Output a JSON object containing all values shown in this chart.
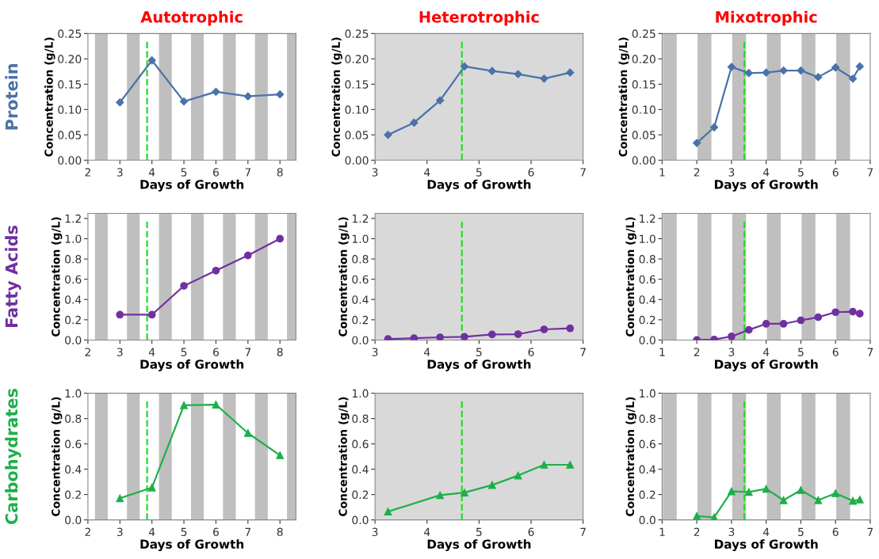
{
  "chart_data": [
    {
      "type": "line",
      "title": "Autotrophic",
      "annotations": [
        "Protein"
      ],
      "xlabel": "Days of Growth",
      "ylabel": "Concentration (g/L)",
      "marker": "diamond",
      "xlim": [
        2,
        8.5
      ],
      "xticks": [
        2,
        3,
        4,
        5,
        6,
        7,
        8
      ],
      "ylim": [
        0,
        0.25
      ],
      "yticks": [
        {
          "value": 0,
          "label": "0.00"
        },
        {
          "value": 0.05,
          "label": "0.05"
        },
        {
          "value": 0.1,
          "label": "0.10"
        },
        {
          "value": 0.15,
          "label": "0.15"
        },
        {
          "value": 0.2,
          "label": "0.20"
        },
        {
          "value": 0.25,
          "label": "0.25"
        }
      ],
      "series": [
        {
          "color": "#4a72a8",
          "x": [
            3,
            4,
            5,
            6,
            7,
            8
          ],
          "values": [
            0.114,
            0.197,
            0.116,
            0.135,
            0.126,
            0.13
          ]
        }
      ],
      "bands": [
        {
          "axis": "x",
          "from": 2.22,
          "to": 2.62,
          "color": "#bfbfbf"
        },
        {
          "axis": "x",
          "from": 3.22,
          "to": 3.62,
          "color": "#bfbfbf"
        },
        {
          "axis": "x",
          "from": 4.22,
          "to": 4.62,
          "color": "#bfbfbf"
        },
        {
          "axis": "x",
          "from": 5.22,
          "to": 5.62,
          "color": "#bfbfbf"
        },
        {
          "axis": "x",
          "from": 6.22,
          "to": 6.62,
          "color": "#bfbfbf"
        },
        {
          "axis": "x",
          "from": 7.22,
          "to": 7.62,
          "color": "#bfbfbf"
        },
        {
          "axis": "x",
          "from": 8.22,
          "to": 8.5,
          "color": "#bfbfbf"
        }
      ],
      "ref_lines": [
        {
          "axis": "x",
          "value": 3.85,
          "color": "#22dd22",
          "line_style": "dashed"
        }
      ]
    },
    {
      "type": "line",
      "title": "Heterotrophic",
      "xlabel": "Days of Growth",
      "ylabel": "Concentration (g/L)",
      "marker": "diamond",
      "xlim": [
        3,
        7
      ],
      "xticks": [
        3,
        4,
        5,
        6,
        7
      ],
      "ylim": [
        0,
        0.25
      ],
      "yticks": [
        {
          "value": 0,
          "label": "0.00"
        },
        {
          "value": 0.05,
          "label": "0.05"
        },
        {
          "value": 0.1,
          "label": "0.10"
        },
        {
          "value": 0.15,
          "label": "0.15"
        },
        {
          "value": 0.2,
          "label": "0.20"
        },
        {
          "value": 0.25,
          "label": "0.25"
        }
      ],
      "series": [
        {
          "color": "#4a72a8",
          "x": [
            3.25,
            3.75,
            4.25,
            4.72,
            5.25,
            5.75,
            6.25,
            6.75
          ],
          "values": [
            0.05,
            0.074,
            0.118,
            0.185,
            0.176,
            0.17,
            0.161,
            0.173
          ]
        }
      ],
      "bands": [
        {
          "axis": "x",
          "from": 3,
          "to": 7,
          "color": "#d9d9d9"
        }
      ],
      "ref_lines": [
        {
          "axis": "x",
          "value": 4.67,
          "color": "#22dd22",
          "line_style": "dashed"
        }
      ]
    },
    {
      "type": "line",
      "title": "Mixotrophic",
      "xlabel": "Days of Growth",
      "ylabel": "Concentration (g/L)",
      "marker": "diamond",
      "xlim": [
        1,
        7
      ],
      "xticks": [
        1,
        2,
        3,
        4,
        5,
        6,
        7
      ],
      "ylim": [
        0,
        0.25
      ],
      "yticks": [
        {
          "value": 0,
          "label": "0.00"
        },
        {
          "value": 0.05,
          "label": "0.05"
        },
        {
          "value": 0.1,
          "label": "0.10"
        },
        {
          "value": 0.15,
          "label": "0.15"
        },
        {
          "value": 0.2,
          "label": "0.20"
        },
        {
          "value": 0.25,
          "label": "0.25"
        }
      ],
      "series": [
        {
          "color": "#4a72a8",
          "x": [
            2,
            2.5,
            3,
            3.5,
            4,
            4.5,
            5,
            5.5,
            6,
            6.5,
            6.7
          ],
          "values": [
            0.034,
            0.065,
            0.184,
            0.172,
            0.173,
            0.177,
            0.177,
            0.164,
            0.183,
            0.161,
            0.185
          ]
        }
      ],
      "bands": [
        {
          "axis": "x",
          "from": 1.02,
          "to": 1.42,
          "color": "#bfbfbf"
        },
        {
          "axis": "x",
          "from": 2.02,
          "to": 2.42,
          "color": "#bfbfbf"
        },
        {
          "axis": "x",
          "from": 3.02,
          "to": 3.42,
          "color": "#bfbfbf"
        },
        {
          "axis": "x",
          "from": 4.02,
          "to": 4.42,
          "color": "#bfbfbf"
        },
        {
          "axis": "x",
          "from": 5.02,
          "to": 5.42,
          "color": "#bfbfbf"
        },
        {
          "axis": "x",
          "from": 6.02,
          "to": 6.42,
          "color": "#bfbfbf"
        }
      ],
      "ref_lines": [
        {
          "axis": "x",
          "value": 3.37,
          "color": "#22dd22",
          "line_style": "dashed"
        }
      ]
    },
    {
      "type": "line",
      "annotations": [
        "Fatty Acids"
      ],
      "xlabel": "Days of Growth",
      "ylabel": "Concentration (g/L)",
      "marker": "circle",
      "xlim": [
        2,
        8.5
      ],
      "xticks": [
        2,
        3,
        4,
        5,
        6,
        7,
        8
      ],
      "ylim": [
        0,
        1.25
      ],
      "yticks": [
        {
          "value": 0,
          "label": "0.0"
        },
        0.2,
        0.4,
        0.6,
        0.8,
        {
          "value": 1,
          "label": "1.0"
        },
        1.2
      ],
      "series": [
        {
          "color": "#7030a0",
          "x": [
            3,
            4,
            5,
            6,
            7,
            8
          ],
          "values": [
            0.25,
            0.25,
            0.535,
            0.685,
            0.835,
            1.0
          ]
        }
      ],
      "bands": [
        {
          "axis": "x",
          "from": 2.22,
          "to": 2.62,
          "color": "#bfbfbf"
        },
        {
          "axis": "x",
          "from": 3.22,
          "to": 3.62,
          "color": "#bfbfbf"
        },
        {
          "axis": "x",
          "from": 4.22,
          "to": 4.62,
          "color": "#bfbfbf"
        },
        {
          "axis": "x",
          "from": 5.22,
          "to": 5.62,
          "color": "#bfbfbf"
        },
        {
          "axis": "x",
          "from": 6.22,
          "to": 6.62,
          "color": "#bfbfbf"
        },
        {
          "axis": "x",
          "from": 7.22,
          "to": 7.62,
          "color": "#bfbfbf"
        },
        {
          "axis": "x",
          "from": 8.22,
          "to": 8.5,
          "color": "#bfbfbf"
        }
      ],
      "ref_lines": [
        {
          "axis": "x",
          "value": 3.85,
          "color": "#22dd22",
          "line_style": "dashed"
        }
      ]
    },
    {
      "type": "line",
      "xlabel": "Days of Growth",
      "ylabel": "Concentration (g/L)",
      "marker": "circle",
      "xlim": [
        3,
        7
      ],
      "xticks": [
        3,
        4,
        5,
        6,
        7
      ],
      "ylim": [
        0,
        1.25
      ],
      "yticks": [
        {
          "value": 0,
          "label": "0.0"
        },
        0.2,
        0.4,
        0.6,
        0.8,
        {
          "value": 1,
          "label": "1.0"
        },
        1.2
      ],
      "series": [
        {
          "color": "#7030a0",
          "x": [
            3.25,
            3.75,
            4.25,
            4.72,
            5.25,
            5.75,
            6.25,
            6.75
          ],
          "values": [
            0.01,
            0.018,
            0.027,
            0.032,
            0.055,
            0.058,
            0.105,
            0.115
          ]
        }
      ],
      "bands": [
        {
          "axis": "x",
          "from": 3,
          "to": 7,
          "color": "#d9d9d9"
        }
      ],
      "ref_lines": [
        {
          "axis": "x",
          "value": 4.67,
          "color": "#22dd22",
          "line_style": "dashed"
        }
      ]
    },
    {
      "type": "line",
      "xlabel": "Days of Growth",
      "ylabel": "Concentration (g/L)",
      "marker": "circle",
      "xlim": [
        1,
        7
      ],
      "xticks": [
        1,
        2,
        3,
        4,
        5,
        6,
        7
      ],
      "ylim": [
        0,
        1.25
      ],
      "yticks": [
        {
          "value": 0,
          "label": "0.0"
        },
        0.2,
        0.4,
        0.6,
        0.8,
        {
          "value": 1,
          "label": "1.0"
        },
        1.2
      ],
      "series": [
        {
          "color": "#7030a0",
          "x": [
            2,
            2.5,
            3,
            3.5,
            4,
            4.5,
            5,
            5.5,
            6,
            6.5,
            6.7
          ],
          "values": [
            0,
            0.005,
            0.035,
            0.1,
            0.16,
            0.16,
            0.195,
            0.225,
            0.275,
            0.28,
            0.26
          ]
        }
      ],
      "bands": [
        {
          "axis": "x",
          "from": 1.02,
          "to": 1.42,
          "color": "#bfbfbf"
        },
        {
          "axis": "x",
          "from": 2.02,
          "to": 2.42,
          "color": "#bfbfbf"
        },
        {
          "axis": "x",
          "from": 3.02,
          "to": 3.42,
          "color": "#bfbfbf"
        },
        {
          "axis": "x",
          "from": 4.02,
          "to": 4.42,
          "color": "#bfbfbf"
        },
        {
          "axis": "x",
          "from": 5.02,
          "to": 5.42,
          "color": "#bfbfbf"
        },
        {
          "axis": "x",
          "from": 6.02,
          "to": 6.42,
          "color": "#bfbfbf"
        }
      ],
      "ref_lines": [
        {
          "axis": "x",
          "value": 3.37,
          "color": "#22dd22",
          "line_style": "dashed"
        }
      ]
    },
    {
      "type": "line",
      "annotations": [
        "Carbohydrates"
      ],
      "xlabel": "Days of Growth",
      "ylabel": "Concentration (g/L)",
      "marker": "triangle",
      "xlim": [
        2,
        8.5
      ],
      "xticks": [
        2,
        3,
        4,
        5,
        6,
        7,
        8
      ],
      "ylim": [
        0,
        1
      ],
      "yticks": [
        {
          "value": 0,
          "label": "0.0"
        },
        0.2,
        0.4,
        0.6,
        0.8,
        {
          "value": 1,
          "label": "1.0"
        }
      ],
      "series": [
        {
          "color": "#1db04a",
          "x": [
            3,
            4,
            5,
            6,
            7,
            8
          ],
          "values": [
            0.17,
            0.255,
            0.905,
            0.91,
            0.685,
            0.51
          ]
        }
      ],
      "bands": [
        {
          "axis": "x",
          "from": 2.22,
          "to": 2.62,
          "color": "#bfbfbf"
        },
        {
          "axis": "x",
          "from": 3.22,
          "to": 3.62,
          "color": "#bfbfbf"
        },
        {
          "axis": "x",
          "from": 4.22,
          "to": 4.62,
          "color": "#bfbfbf"
        },
        {
          "axis": "x",
          "from": 5.22,
          "to": 5.62,
          "color": "#bfbfbf"
        },
        {
          "axis": "x",
          "from": 6.22,
          "to": 6.62,
          "color": "#bfbfbf"
        },
        {
          "axis": "x",
          "from": 7.22,
          "to": 7.62,
          "color": "#bfbfbf"
        },
        {
          "axis": "x",
          "from": 8.22,
          "to": 8.5,
          "color": "#bfbfbf"
        }
      ],
      "ref_lines": [
        {
          "axis": "x",
          "value": 3.85,
          "color": "#22dd22",
          "line_style": "dashed"
        }
      ]
    },
    {
      "type": "line",
      "xlabel": "Days of Growth",
      "ylabel": "Concentration (g/L)",
      "marker": "triangle",
      "xlim": [
        3,
        7
      ],
      "xticks": [
        3,
        4,
        5,
        6,
        7
      ],
      "ylim": [
        0,
        1
      ],
      "yticks": [
        {
          "value": 0,
          "label": "0.0"
        },
        0.2,
        0.4,
        0.6,
        0.8,
        {
          "value": 1,
          "label": "1.0"
        }
      ],
      "series": [
        {
          "color": "#1db04a",
          "x": [
            3.25,
            4.25,
            4.72,
            5.25,
            5.75,
            6.25,
            6.75
          ],
          "values": [
            0.065,
            0.195,
            0.215,
            0.275,
            0.35,
            0.435,
            0.435
          ]
        }
      ],
      "bands": [
        {
          "axis": "x",
          "from": 3,
          "to": 7,
          "color": "#d9d9d9"
        }
      ],
      "ref_lines": [
        {
          "axis": "x",
          "value": 4.67,
          "color": "#22dd22",
          "line_style": "dashed"
        }
      ]
    },
    {
      "type": "line",
      "xlabel": "Days of Growth",
      "ylabel": "Concentration (g/L)",
      "marker": "triangle",
      "xlim": [
        1,
        7
      ],
      "xticks": [
        1,
        2,
        3,
        4,
        5,
        6,
        7
      ],
      "ylim": [
        0,
        1
      ],
      "yticks": [
        {
          "value": 0,
          "label": "0.0"
        },
        0.2,
        0.4,
        0.6,
        0.8,
        {
          "value": 1,
          "label": "1.0"
        }
      ],
      "series": [
        {
          "color": "#1db04a",
          "x": [
            2,
            2.5,
            3,
            3.5,
            4,
            4.5,
            5,
            5.5,
            6,
            6.5,
            6.7
          ],
          "values": [
            0.03,
            0.02,
            0.225,
            0.22,
            0.245,
            0.155,
            0.235,
            0.155,
            0.21,
            0.15,
            0.16
          ]
        }
      ],
      "bands": [
        {
          "axis": "x",
          "from": 1.02,
          "to": 1.42,
          "color": "#bfbfbf"
        },
        {
          "axis": "x",
          "from": 2.02,
          "to": 2.42,
          "color": "#bfbfbf"
        },
        {
          "axis": "x",
          "from": 3.02,
          "to": 3.42,
          "color": "#bfbfbf"
        },
        {
          "axis": "x",
          "from": 4.02,
          "to": 4.42,
          "color": "#bfbfbf"
        },
        {
          "axis": "x",
          "from": 5.02,
          "to": 5.42,
          "color": "#bfbfbf"
        },
        {
          "axis": "x",
          "from": 6.02,
          "to": 6.42,
          "color": "#bfbfbf"
        }
      ],
      "ref_lines": [
        {
          "axis": "x",
          "value": 3.37,
          "color": "#22dd22",
          "line_style": "dashed"
        }
      ]
    }
  ]
}
